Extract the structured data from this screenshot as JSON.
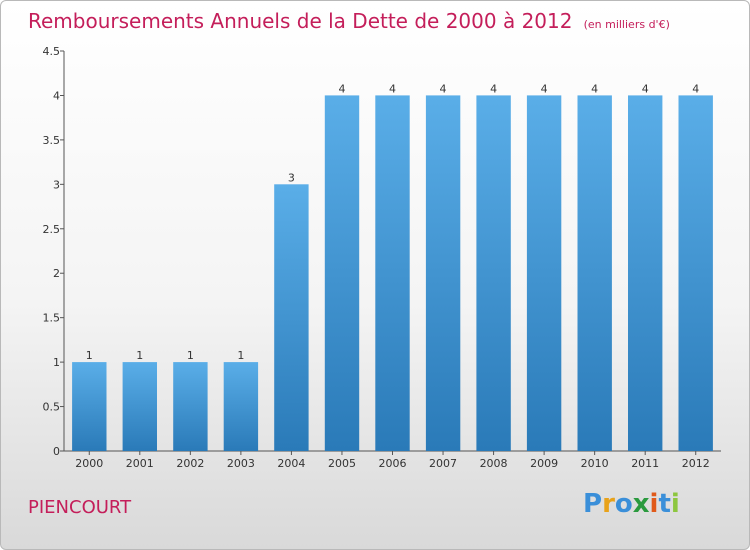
{
  "title": "Remboursements Annuels de la Dette de 2000 à 2012",
  "unit": "(en milliers d'€)",
  "commune": "PIENCOURT",
  "logo": {
    "letters": [
      "P",
      "r",
      "o",
      "x",
      "i",
      "t",
      "i"
    ],
    "colors": [
      "#3a8fd9",
      "#e8a21a",
      "#3a8fd9",
      "#2b9a3e",
      "#e05a1a",
      "#3a8fd9",
      "#8dc63f"
    ]
  },
  "colors": {
    "bar_light": "#5aaee8",
    "bar_dark": "#2a7ab8",
    "title": "#c41e5a"
  },
  "chart_data": {
    "type": "bar",
    "categories": [
      "2000",
      "2001",
      "2002",
      "2003",
      "2004",
      "2005",
      "2006",
      "2007",
      "2008",
      "2009",
      "2010",
      "2011",
      "2012"
    ],
    "values": [
      1,
      1,
      1,
      1,
      3,
      4,
      4,
      4,
      4,
      4,
      4,
      4,
      4
    ],
    "data_labels": [
      "1",
      "1",
      "1",
      "1",
      "3",
      "4",
      "4",
      "4",
      "4",
      "4",
      "4",
      "4",
      "4"
    ],
    "yticks": [
      "0",
      "0.5",
      "1",
      "1.5",
      "2",
      "2.5",
      "3",
      "3.5",
      "4",
      "4.5"
    ],
    "ylim": [
      0,
      4.5
    ],
    "xlabel": "",
    "ylabel": "",
    "grid": false,
    "legend": "none"
  }
}
